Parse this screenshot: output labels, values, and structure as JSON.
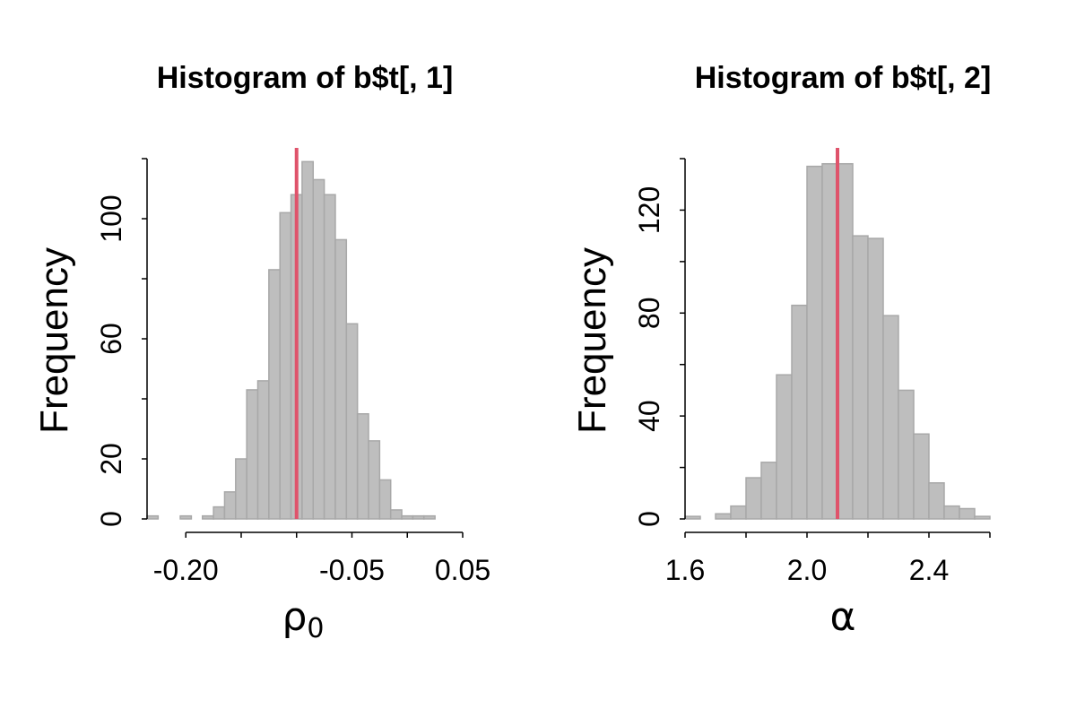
{
  "colors": {
    "bar_fill": "#bebebe",
    "bar_stroke": "#a8a8a8",
    "reference_line": "#df536b",
    "axis": "#000000"
  },
  "chart_data": [
    {
      "type": "bar",
      "title": "Histogram of b$t[, 1]",
      "xlabel": "ρ₀",
      "xlabel_parts": {
        "base": "ρ",
        "subscript": "0"
      },
      "ylabel": "Frequency",
      "xlim": [
        -0.235,
        0.05
      ],
      "ylim": [
        0,
        120
      ],
      "xticks": [
        -0.2,
        -0.15,
        -0.1,
        -0.05,
        0.0,
        0.05
      ],
      "xtick_labels": [
        "-0.20",
        "",
        "",
        "-0.05",
        "",
        "0.05"
      ],
      "yticks": [
        0,
        20,
        40,
        60,
        80,
        100,
        120
      ],
      "ytick_labels": [
        "0",
        "20",
        "",
        "60",
        "",
        "100",
        ""
      ],
      "bin_edges": [
        -0.235,
        -0.225,
        -0.215,
        -0.205,
        -0.195,
        -0.185,
        -0.175,
        -0.165,
        -0.155,
        -0.145,
        -0.135,
        -0.125,
        -0.115,
        -0.105,
        -0.095,
        -0.085,
        -0.075,
        -0.065,
        -0.055,
        -0.045,
        -0.035,
        -0.025,
        -0.015,
        -0.005,
        0.005,
        0.015,
        0.025
      ],
      "values": [
        1,
        0,
        0,
        1,
        0,
        1,
        4,
        9,
        20,
        43,
        46,
        83,
        102,
        108,
        119,
        113,
        108,
        93,
        65,
        35,
        26,
        13,
        3,
        1,
        1,
        1
      ],
      "reference_line_x": -0.1
    },
    {
      "type": "bar",
      "title": "Histogram of b$t[, 2]",
      "xlabel": "α",
      "ylabel": "Frequency",
      "xlim": [
        1.6,
        2.6
      ],
      "ylim": [
        0,
        140
      ],
      "xticks": [
        1.6,
        1.8,
        2.0,
        2.2,
        2.4,
        2.6
      ],
      "xtick_labels": [
        "1.6",
        "",
        "2.0",
        "",
        "2.4",
        ""
      ],
      "yticks": [
        0,
        20,
        40,
        60,
        80,
        100,
        120,
        140
      ],
      "ytick_labels": [
        "0",
        "",
        "40",
        "",
        "80",
        "",
        "120",
        ""
      ],
      "bin_edges": [
        1.6,
        1.65,
        1.7,
        1.75,
        1.8,
        1.85,
        1.9,
        1.95,
        2.0,
        2.05,
        2.1,
        2.15,
        2.2,
        2.25,
        2.3,
        2.35,
        2.4,
        2.45,
        2.5,
        2.55,
        2.6
      ],
      "values": [
        1,
        0,
        2,
        5,
        16,
        22,
        56,
        83,
        137,
        138,
        138,
        110,
        109,
        79,
        50,
        33,
        14,
        5,
        4,
        1
      ],
      "reference_line_x": 2.1
    }
  ]
}
